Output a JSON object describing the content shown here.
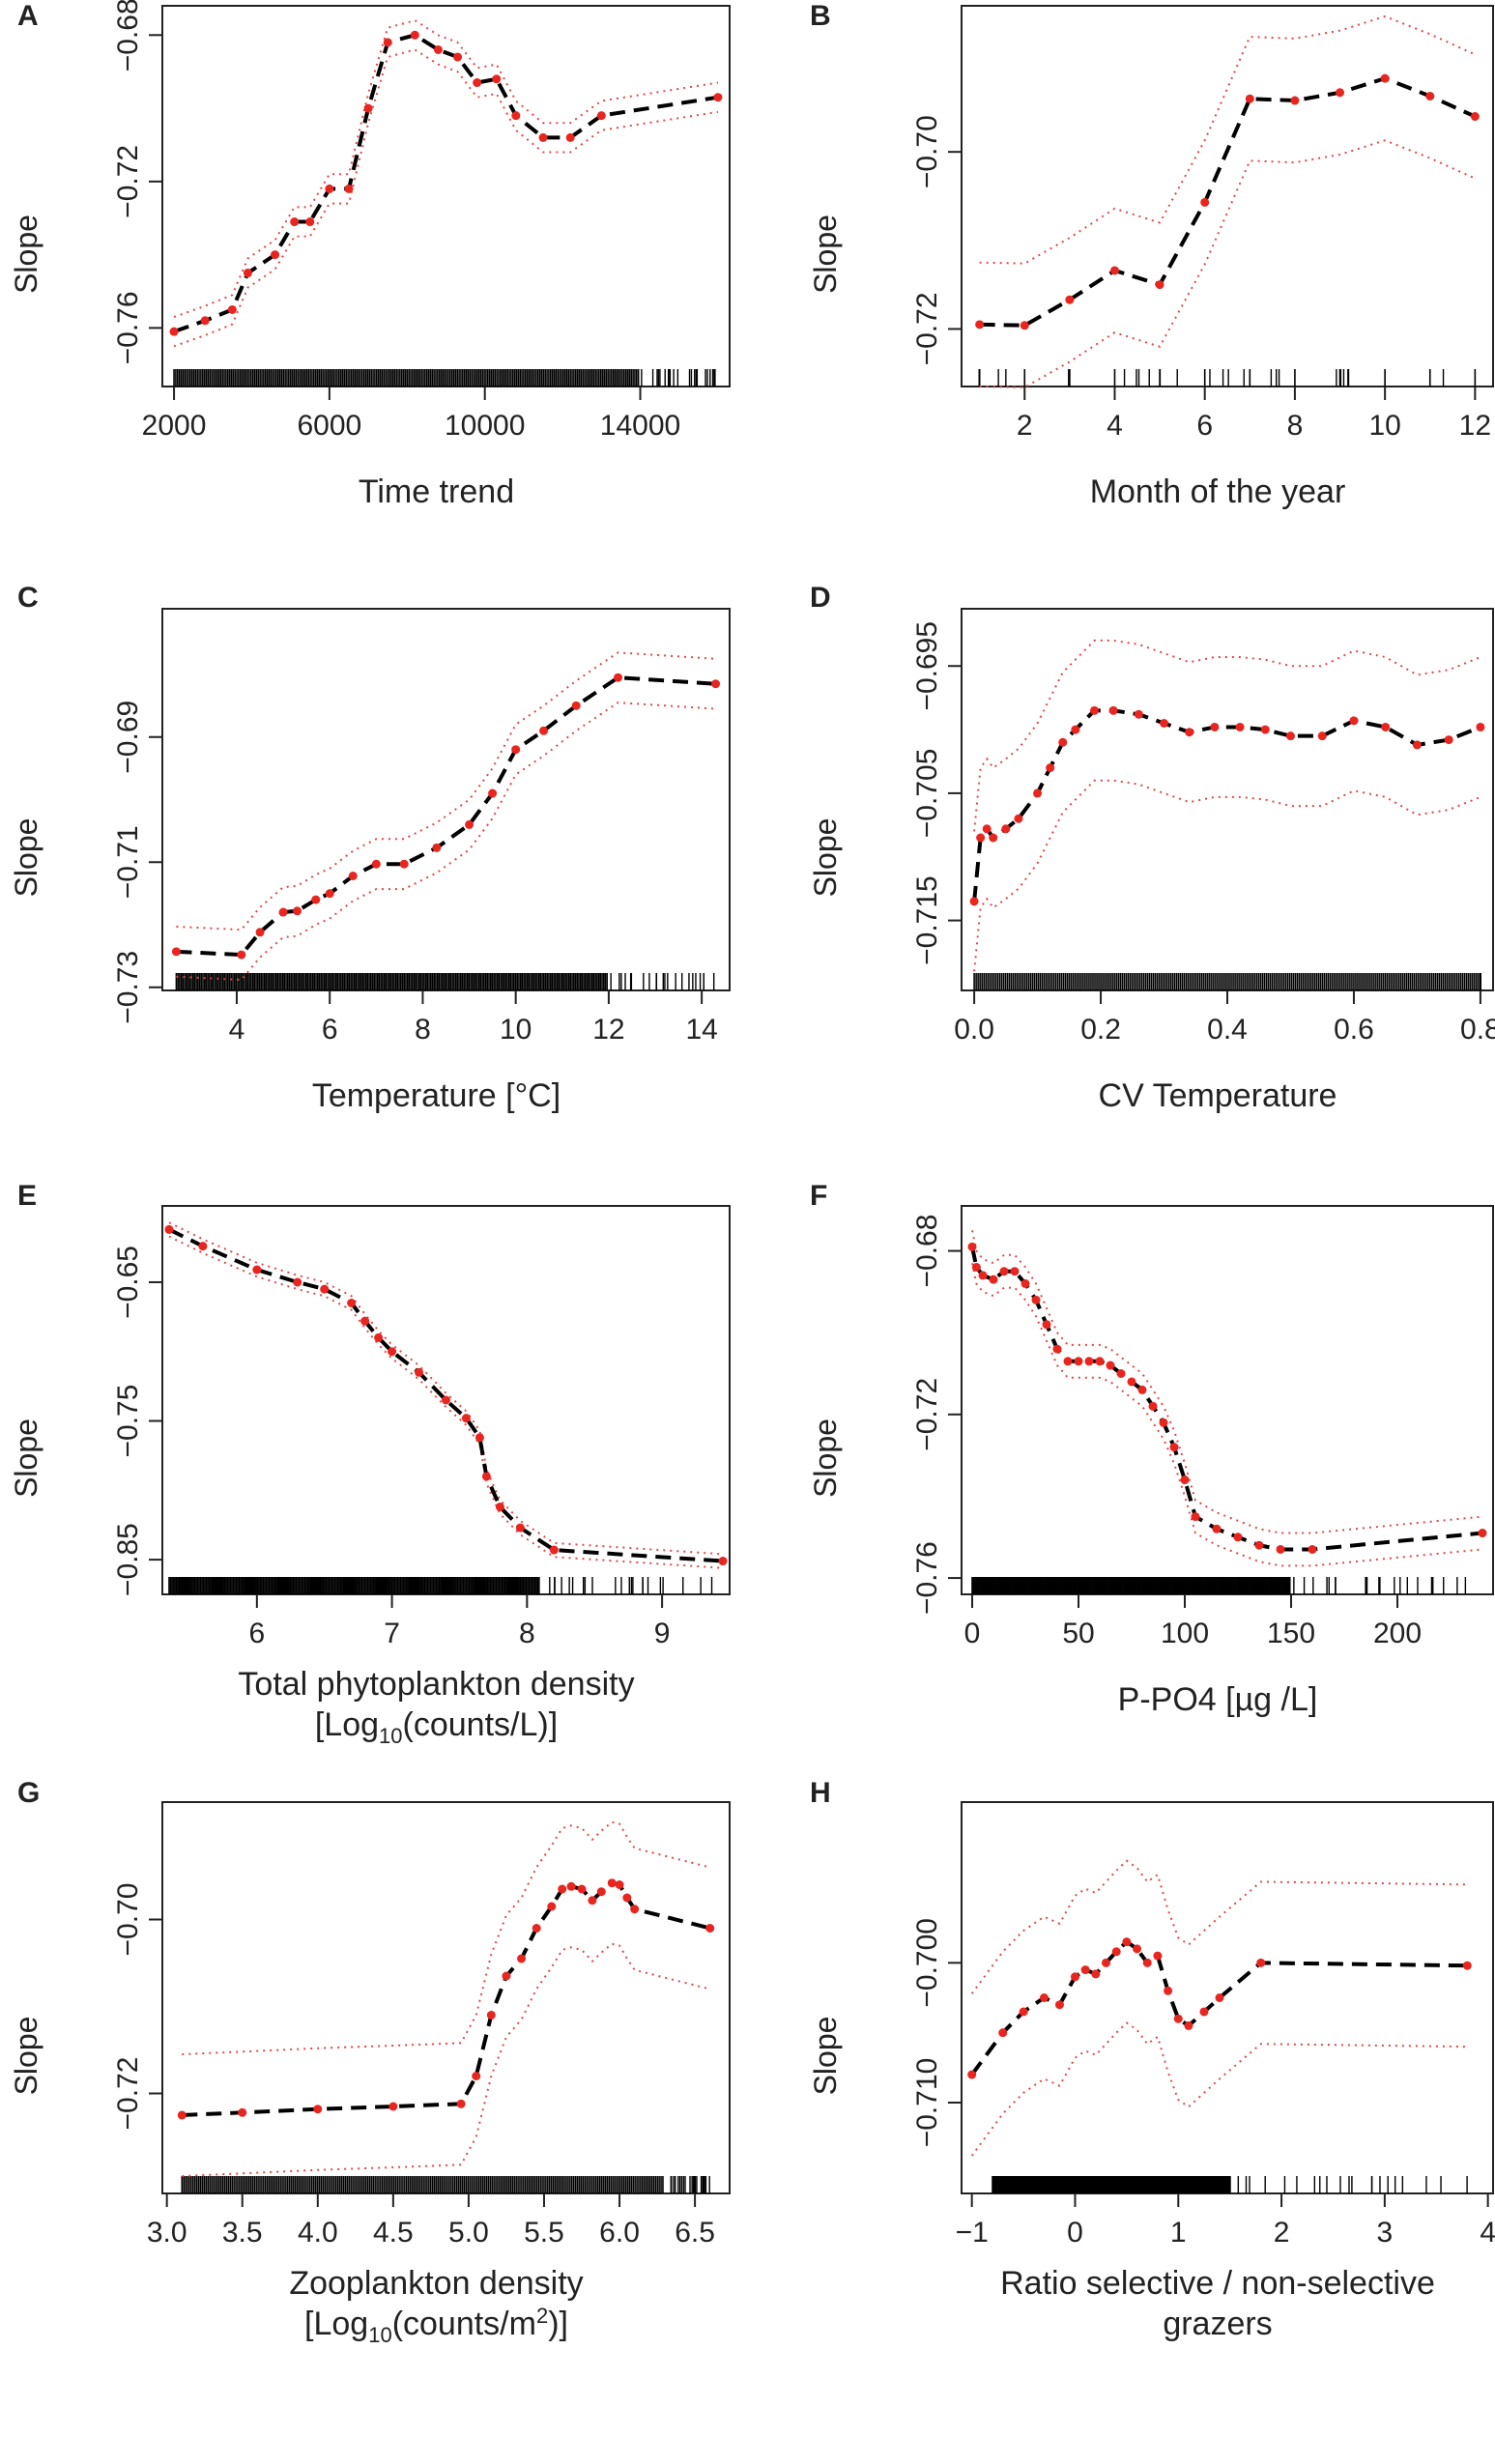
{
  "chart_data": [
    {
      "type": "line",
      "panel": "A",
      "xlabel": "Time trend",
      "ylabel": "Slope",
      "xlim": [
        1700,
        16300
      ],
      "ylim": [
        -0.776,
        -0.672
      ],
      "xticks": [
        2000,
        6000,
        10000,
        14000
      ],
      "yticks": [
        -0.68,
        -0.72,
        -0.76
      ],
      "ytick_labels": [
        "−0.68",
        "−0.72",
        "−0.76"
      ],
      "band": 0.004,
      "series": [
        {
          "name": "fit",
          "x": [
            2000,
            2800,
            3500,
            3900,
            4600,
            5100,
            5500,
            6000,
            6500,
            7000,
            7500,
            8200,
            8800,
            9300,
            9800,
            10300,
            10800,
            11500,
            12200,
            13000,
            16000
          ],
          "y": [
            -0.761,
            -0.758,
            -0.755,
            -0.745,
            -0.74,
            -0.731,
            -0.731,
            -0.722,
            -0.722,
            -0.7,
            -0.682,
            -0.68,
            -0.684,
            -0.686,
            -0.693,
            -0.692,
            -0.702,
            -0.708,
            -0.708,
            -0.702,
            -0.697
          ]
        }
      ],
      "rug": {
        "from": 2000,
        "to": 16000,
        "dense_to": 14000
      }
    },
    {
      "type": "line",
      "panel": "B",
      "xlabel": "Month of the year",
      "ylabel": "Slope",
      "xlim": [
        0.6,
        12.4
      ],
      "ylim": [
        -0.7265,
        -0.6835
      ],
      "xticks": [
        2,
        4,
        6,
        8,
        10,
        12
      ],
      "yticks": [
        -0.7,
        -0.72
      ],
      "ytick_labels": [
        "−0.70",
        "−0.72"
      ],
      "band": 0.007,
      "series": [
        {
          "name": "fit",
          "x": [
            1,
            2,
            3,
            4,
            5,
            6,
            7,
            8,
            9,
            10,
            11,
            12
          ],
          "y": [
            -0.7195,
            -0.7196,
            -0.7167,
            -0.7134,
            -0.715,
            -0.7057,
            -0.694,
            -0.6942,
            -0.6933,
            -0.6917,
            -0.6937,
            -0.696
          ]
        }
      ],
      "rug": {
        "from": 1,
        "to": 12,
        "dense_to": 1
      }
    },
    {
      "type": "line",
      "panel": "C",
      "xlabel": "Temperature [°C]",
      "ylabel": "Slope",
      "xlim": [
        2.4,
        14.6
      ],
      "ylim": [
        -0.7305,
        -0.6695
      ],
      "xticks": [
        4,
        6,
        8,
        10,
        12,
        14
      ],
      "yticks": [
        -0.69,
        -0.71,
        -0.73
      ],
      "ytick_labels": [
        "−0.69",
        "−0.71",
        "−0.73"
      ],
      "band": 0.004,
      "series": [
        {
          "name": "fit",
          "x": [
            2.7,
            4.1,
            4.5,
            5.0,
            5.3,
            5.7,
            6.0,
            6.5,
            7.0,
            7.6,
            8.3,
            9.0,
            9.5,
            10.0,
            10.6,
            11.3,
            12.2,
            14.3
          ],
          "y": [
            -0.7243,
            -0.7248,
            -0.7212,
            -0.718,
            -0.7178,
            -0.716,
            -0.715,
            -0.7122,
            -0.7103,
            -0.7103,
            -0.7077,
            -0.704,
            -0.699,
            -0.692,
            -0.689,
            -0.685,
            -0.6805,
            -0.6815
          ]
        }
      ],
      "rug": {
        "from": 2.7,
        "to": 14.3,
        "dense_to": 12.0
      }
    },
    {
      "type": "line",
      "panel": "D",
      "xlabel": "CV Temperature",
      "ylabel": "Slope",
      "xlim": [
        -0.02,
        0.82
      ],
      "ylim": [
        -0.7205,
        -0.6905
      ],
      "xticks": [
        0.0,
        0.2,
        0.4,
        0.6,
        0.8
      ],
      "xtick_labels": [
        "0.0",
        "0.2",
        "0.4",
        "0.6",
        "0.8"
      ],
      "yticks": [
        -0.695,
        -0.705,
        -0.715
      ],
      "ytick_labels": [
        "−0.695",
        "−0.705",
        "−0.715"
      ],
      "band": 0.0055,
      "series": [
        {
          "name": "fit",
          "x": [
            0.0,
            0.01,
            0.02,
            0.03,
            0.05,
            0.07,
            0.1,
            0.12,
            0.14,
            0.16,
            0.19,
            0.22,
            0.26,
            0.3,
            0.34,
            0.38,
            0.42,
            0.46,
            0.5,
            0.55,
            0.6,
            0.65,
            0.7,
            0.75,
            0.8
          ],
          "y": [
            -0.7135,
            -0.7085,
            -0.7078,
            -0.7085,
            -0.7078,
            -0.707,
            -0.705,
            -0.703,
            -0.701,
            -0.7,
            -0.6985,
            -0.6985,
            -0.6988,
            -0.6995,
            -0.7002,
            -0.6998,
            -0.6998,
            -0.7,
            -0.7005,
            -0.7005,
            -0.6993,
            -0.6998,
            -0.7012,
            -0.7008,
            -0.6998
          ]
        }
      ],
      "rug": {
        "from": 0.0,
        "to": 0.8,
        "dense_to": 0.8
      }
    },
    {
      "type": "line",
      "panel": "E",
      "xlabel": "Total phytoplankton density",
      "xlabel_line2_prefix": "[Log",
      "xlabel_line2_sub": "10",
      "xlabel_line2_suffix": "(counts/L)]",
      "ylabel": "Slope",
      "xlim": [
        5.3,
        9.5
      ],
      "ylim": [
        -0.875,
        -0.595
      ],
      "xticks": [
        6,
        7,
        8,
        9
      ],
      "yticks": [
        -0.65,
        -0.75,
        -0.85
      ],
      "ytick_labels": [
        "−0.65",
        "−0.75",
        "−0.85"
      ],
      "band": 0.005,
      "series": [
        {
          "name": "fit",
          "x": [
            5.35,
            5.6,
            6.0,
            6.3,
            6.5,
            6.7,
            6.8,
            6.9,
            7.0,
            7.2,
            7.4,
            7.55,
            7.65,
            7.7,
            7.8,
            7.95,
            8.2,
            9.45
          ],
          "y": [
            -0.612,
            -0.624,
            -0.641,
            -0.65,
            -0.655,
            -0.665,
            -0.678,
            -0.69,
            -0.7,
            -0.715,
            -0.735,
            -0.748,
            -0.762,
            -0.79,
            -0.812,
            -0.827,
            -0.843,
            -0.851
          ]
        }
      ],
      "rug": {
        "from": 5.35,
        "to": 9.45,
        "dense_to": 8.1
      }
    },
    {
      "type": "line",
      "panel": "F",
      "xlabel": "P-PO4 [µg /L]",
      "ylabel": "Slope",
      "xlim": [
        -5,
        245
      ],
      "ylim": [
        -0.764,
        -0.669
      ],
      "xticks": [
        0,
        50,
        100,
        150,
        200
      ],
      "yticks": [
        -0.68,
        -0.72,
        -0.76
      ],
      "ytick_labels": [
        "−0.68",
        "−0.72",
        "−0.76"
      ],
      "band": 0.004,
      "series": [
        {
          "name": "fit",
          "x": [
            0,
            2,
            5,
            10,
            15,
            20,
            25,
            30,
            35,
            40,
            45,
            50,
            55,
            60,
            65,
            70,
            75,
            80,
            85,
            90,
            95,
            100,
            105,
            115,
            125,
            135,
            145,
            160,
            240
          ],
          "y": [
            -0.679,
            -0.684,
            -0.686,
            -0.687,
            -0.685,
            -0.685,
            -0.688,
            -0.692,
            -0.698,
            -0.704,
            -0.707,
            -0.707,
            -0.707,
            -0.707,
            -0.708,
            -0.71,
            -0.712,
            -0.714,
            -0.718,
            -0.722,
            -0.728,
            -0.736,
            -0.745,
            -0.748,
            -0.75,
            -0.752,
            -0.753,
            -0.753,
            -0.749
          ]
        }
      ],
      "rug": {
        "from": 0,
        "to": 240,
        "dense_to": 150
      }
    },
    {
      "type": "line",
      "panel": "G",
      "xlabel": "Zooplankton density",
      "xlabel_line2_prefix": "[Log",
      "xlabel_line2_sub": "10",
      "xlabel_line2_suffix": "(counts/m",
      "xlabel_line2_sup": "2",
      "xlabel_line2_end": ")]",
      "ylabel": "Slope",
      "xlim": [
        2.97,
        6.73
      ],
      "ylim": [
        -0.7315,
        -0.6865
      ],
      "xticks": [
        3.0,
        3.5,
        4.0,
        4.5,
        5.0,
        5.5,
        6.0,
        6.5
      ],
      "xtick_labels": [
        "3.0",
        "3.5",
        "4.0",
        "4.5",
        "5.0",
        "5.5",
        "6.0",
        "6.5"
      ],
      "yticks": [
        -0.7,
        -0.72
      ],
      "ytick_labels": [
        "−0.70",
        "−0.72"
      ],
      "band": 0.007,
      "series": [
        {
          "name": "fit",
          "x": [
            3.1,
            3.5,
            4.0,
            4.5,
            4.95,
            5.05,
            5.15,
            5.25,
            5.35,
            5.45,
            5.55,
            5.62,
            5.68,
            5.75,
            5.82,
            5.88,
            5.95,
            6.0,
            6.05,
            6.1,
            6.6
          ],
          "y": [
            -0.7225,
            -0.7222,
            -0.7218,
            -0.7215,
            -0.7212,
            -0.718,
            -0.711,
            -0.7065,
            -0.7045,
            -0.701,
            -0.6985,
            -0.6965,
            -0.6962,
            -0.6965,
            -0.6978,
            -0.6968,
            -0.6958,
            -0.696,
            -0.6975,
            -0.6988,
            -0.701
          ]
        }
      ],
      "rug": {
        "from": 3.1,
        "to": 6.6,
        "dense_to": 6.3
      }
    },
    {
      "type": "line",
      "panel": "H",
      "xlabel": "Ratio selective / non-selective",
      "xlabel_line2": "grazers",
      "ylabel": "Slope",
      "xlim": [
        -1.1,
        4.05
      ],
      "ylim": [
        -0.7165,
        -0.6885
      ],
      "xticks": [
        -1,
        0,
        1,
        2,
        3,
        4
      ],
      "xtick_labels": [
        "−1",
        "0",
        "1",
        "2",
        "3",
        "4"
      ],
      "yticks": [
        -0.7,
        -0.71
      ],
      "ytick_labels": [
        "0.700",
        "0.710"
      ],
      "ytick_prefix": "−",
      "band": 0.0058,
      "series": [
        {
          "name": "fit",
          "x": [
            -1.0,
            -0.7,
            -0.5,
            -0.3,
            -0.15,
            0.0,
            0.1,
            0.2,
            0.3,
            0.4,
            0.5,
            0.6,
            0.7,
            0.8,
            0.9,
            1.0,
            1.1,
            1.25,
            1.4,
            1.8,
            3.8
          ],
          "y": [
            -0.708,
            -0.705,
            -0.7035,
            -0.7025,
            -0.703,
            -0.701,
            -0.7005,
            -0.7008,
            -0.7,
            -0.6992,
            -0.6985,
            -0.699,
            -0.7,
            -0.6995,
            -0.702,
            -0.704,
            -0.7045,
            -0.7035,
            -0.7025,
            -0.7,
            -0.7002
          ]
        }
      ],
      "rug": {
        "from": -0.8,
        "to": 3.8,
        "dense_to": 1.5
      }
    }
  ],
  "panel_labels": [
    "A",
    "B",
    "C",
    "D",
    "E",
    "F",
    "G",
    "H"
  ],
  "colors": {
    "line": "#000000",
    "points": "#e8251f",
    "band": "#e04848",
    "axis": "#222222"
  }
}
